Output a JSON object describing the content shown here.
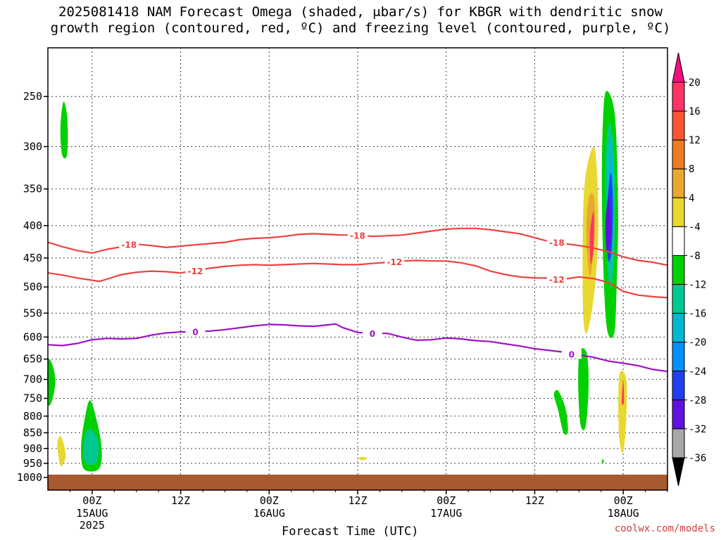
{
  "chart_data": {
    "type": "heatmap",
    "title_line1": "2025081418 NAM Forecast Omega (shaded, μbar/s) for KBGR with dendritic snow",
    "title_line2": "growth region (contoured, red, ºC) and freezing level (contoured, purple, ºC)",
    "xlabel": "Forecast Time (UTC)",
    "credit": "coolwx.com/models",
    "x_range": [
      -6,
      78
    ],
    "y_range": [
      1000,
      200
    ],
    "y_scale": "log-pressure",
    "y_ticks": [
      250,
      300,
      350,
      400,
      450,
      500,
      550,
      600,
      650,
      700,
      750,
      800,
      850,
      900,
      950,
      1000
    ],
    "x_ticks": [
      {
        "h": 0,
        "l1": "00Z",
        "l2": "15AUG",
        "l3": "2025"
      },
      {
        "h": 12,
        "l1": "12Z",
        "l2": "",
        "l3": ""
      },
      {
        "h": 24,
        "l1": "00Z",
        "l2": "16AUG",
        "l3": ""
      },
      {
        "h": 36,
        "l1": "12Z",
        "l2": "",
        "l3": ""
      },
      {
        "h": 48,
        "l1": "00Z",
        "l2": "17AUG",
        "l3": ""
      },
      {
        "h": 60,
        "l1": "12Z",
        "l2": "",
        "l3": ""
      },
      {
        "h": 72,
        "l1": "00Z",
        "l2": "18AUG",
        "l3": ""
      }
    ],
    "colorbar": {
      "labels": [
        20,
        16,
        12,
        8,
        4,
        -4,
        -8,
        -12,
        -16,
        -20,
        -24,
        -28,
        -32,
        -36
      ],
      "colors": [
        "#ff3366",
        "#ff5533",
        "#f07a20",
        "#e8a830",
        "#e8d830",
        "#ffffff",
        "#00d000",
        "#00c890",
        "#00b8d0",
        "#0090ff",
        "#2040f0",
        "#6010e0",
        "#a010c8",
        "#a8a8a8"
      ],
      "top_color": "#f01080",
      "bottom_color": "#000000"
    },
    "contours": [
      {
        "name": "-18",
        "color": "#f04040",
        "label": "-18",
        "points": [
          [
            -6,
            425
          ],
          [
            -4,
            432
          ],
          [
            -2,
            438
          ],
          [
            0,
            442
          ],
          [
            2,
            436
          ],
          [
            4,
            432
          ],
          [
            6,
            428
          ],
          [
            8,
            430
          ],
          [
            10,
            433
          ],
          [
            12,
            431
          ],
          [
            14,
            429
          ],
          [
            16,
            427
          ],
          [
            18,
            425
          ],
          [
            20,
            421
          ],
          [
            22,
            419
          ],
          [
            24,
            418
          ],
          [
            26,
            416
          ],
          [
            28,
            413
          ],
          [
            30,
            412
          ],
          [
            32,
            413
          ],
          [
            34,
            414
          ],
          [
            36,
            414
          ],
          [
            38,
            416
          ],
          [
            40,
            415
          ],
          [
            42,
            414
          ],
          [
            44,
            411
          ],
          [
            46,
            408
          ],
          [
            48,
            405
          ],
          [
            50,
            404
          ],
          [
            52,
            404
          ],
          [
            54,
            406
          ],
          [
            56,
            409
          ],
          [
            58,
            412
          ],
          [
            60,
            418
          ],
          [
            62,
            424
          ],
          [
            64,
            427
          ],
          [
            66,
            430
          ],
          [
            68,
            434
          ],
          [
            70,
            440
          ],
          [
            72,
            448
          ],
          [
            74,
            454
          ],
          [
            76,
            457
          ],
          [
            78,
            462
          ]
        ],
        "labels_at": [
          [
            5,
            428
          ],
          [
            36,
            414
          ],
          [
            63,
            425
          ]
        ]
      },
      {
        "name": "-12",
        "color": "#f04040",
        "label": "-12",
        "points": [
          [
            -6,
            475
          ],
          [
            -4,
            479
          ],
          [
            -2,
            484
          ],
          [
            0,
            488
          ],
          [
            1,
            490
          ],
          [
            2,
            486
          ],
          [
            4,
            478
          ],
          [
            6,
            474
          ],
          [
            8,
            472
          ],
          [
            10,
            473
          ],
          [
            12,
            475
          ],
          [
            14,
            471
          ],
          [
            16,
            467
          ],
          [
            18,
            464
          ],
          [
            20,
            462
          ],
          [
            22,
            461
          ],
          [
            24,
            462
          ],
          [
            26,
            461
          ],
          [
            28,
            460
          ],
          [
            30,
            459
          ],
          [
            32,
            460
          ],
          [
            34,
            461
          ],
          [
            36,
            461
          ],
          [
            38,
            459
          ],
          [
            40,
            457
          ],
          [
            42,
            455
          ],
          [
            44,
            454
          ],
          [
            46,
            455
          ],
          [
            48,
            455
          ],
          [
            50,
            458
          ],
          [
            52,
            463
          ],
          [
            54,
            472
          ],
          [
            56,
            478
          ],
          [
            58,
            482
          ],
          [
            60,
            484
          ],
          [
            62,
            484
          ],
          [
            64,
            486
          ],
          [
            66,
            482
          ],
          [
            68,
            485
          ],
          [
            70,
            492
          ],
          [
            72,
            508
          ],
          [
            74,
            515
          ],
          [
            76,
            518
          ],
          [
            78,
            520
          ]
        ],
        "labels_at": [
          [
            14,
            471
          ],
          [
            41,
            456
          ],
          [
            63,
            486
          ]
        ]
      },
      {
        "name": "0",
        "color": "#a010c8",
        "label": "0",
        "points": [
          [
            -6,
            617
          ],
          [
            -4,
            619
          ],
          [
            -2,
            614
          ],
          [
            0,
            606
          ],
          [
            2,
            603
          ],
          [
            4,
            604
          ],
          [
            6,
            603
          ],
          [
            8,
            596
          ],
          [
            10,
            591
          ],
          [
            12,
            589
          ],
          [
            14,
            588
          ],
          [
            16,
            587
          ],
          [
            18,
            584
          ],
          [
            20,
            580
          ],
          [
            22,
            576
          ],
          [
            24,
            573
          ],
          [
            26,
            574
          ],
          [
            28,
            576
          ],
          [
            30,
            577
          ],
          [
            32,
            574
          ],
          [
            33,
            572
          ],
          [
            34,
            580
          ],
          [
            36,
            590
          ],
          [
            38,
            592
          ],
          [
            40,
            592
          ],
          [
            42,
            600
          ],
          [
            44,
            607
          ],
          [
            46,
            606
          ],
          [
            48,
            602
          ],
          [
            50,
            604
          ],
          [
            52,
            608
          ],
          [
            54,
            610
          ],
          [
            56,
            615
          ],
          [
            58,
            620
          ],
          [
            60,
            626
          ],
          [
            62,
            630
          ],
          [
            64,
            634
          ],
          [
            66,
            640
          ],
          [
            68,
            646
          ],
          [
            70,
            655
          ],
          [
            72,
            660
          ],
          [
            74,
            666
          ],
          [
            76,
            675
          ],
          [
            78,
            680
          ]
        ],
        "labels_at": [
          [
            14,
            588
          ],
          [
            38,
            592
          ],
          [
            65,
            638
          ]
        ]
      }
    ],
    "omega_regions": [
      {
        "color": "#00d000",
        "points": [
          [
            -3.9,
            255
          ],
          [
            -3.4,
            268
          ],
          [
            -3.3,
            295
          ],
          [
            -3.5,
            312
          ],
          [
            -4.1,
            308
          ],
          [
            -4.3,
            280
          ]
        ]
      },
      {
        "color": "#00d000",
        "points": [
          [
            -6,
            655
          ],
          [
            -5.3,
            668
          ],
          [
            -5.0,
            710
          ],
          [
            -5.5,
            760
          ],
          [
            -6,
            760
          ]
        ]
      },
      {
        "color": "#e8d830",
        "points": [
          [
            -4.3,
            860
          ],
          [
            -3.8,
            890
          ],
          [
            -3.6,
            930
          ],
          [
            -4.2,
            960
          ],
          [
            -4.6,
            920
          ],
          [
            -4.7,
            880
          ]
        ]
      },
      {
        "color": "#00d000",
        "points": [
          [
            -0.3,
            755
          ],
          [
            0.7,
            820
          ],
          [
            1.3,
            905
          ],
          [
            0.9,
            970
          ],
          [
            -1.1,
            970
          ],
          [
            -1.5,
            900
          ],
          [
            -1.1,
            820
          ]
        ]
      },
      {
        "color": "#00c890",
        "points": [
          [
            -0.6,
            840
          ],
          [
            0.6,
            860
          ],
          [
            0.9,
            905
          ],
          [
            0.5,
            950
          ],
          [
            -0.8,
            950
          ],
          [
            -1.2,
            905
          ]
        ]
      },
      {
        "color": "#e8d830",
        "points": [
          [
            36.6,
            928
          ],
          [
            37.3,
            933
          ],
          [
            36.6,
            940
          ],
          [
            36.1,
            933
          ]
        ]
      },
      {
        "color": "#00d000",
        "points": [
          [
            63.2,
            730
          ],
          [
            64.2,
            780
          ],
          [
            64.5,
            845
          ],
          [
            63.9,
            850
          ],
          [
            63.2,
            785
          ],
          [
            62.6,
            740
          ]
        ]
      },
      {
        "color": "#00d000",
        "points": [
          [
            66.4,
            625
          ],
          [
            67.1,
            640
          ],
          [
            67.3,
            720
          ],
          [
            66.9,
            830
          ],
          [
            66.2,
            825
          ],
          [
            65.9,
            720
          ],
          [
            66.0,
            640
          ]
        ]
      },
      {
        "color": "#e8d830",
        "points": [
          [
            68.0,
            300
          ],
          [
            68.5,
            340
          ],
          [
            68.6,
            420
          ],
          [
            68.0,
            520
          ],
          [
            67.1,
            590
          ],
          [
            66.6,
            560
          ],
          [
            66.5,
            440
          ],
          [
            66.8,
            340
          ]
        ]
      },
      {
        "color": "#e8a830",
        "points": [
          [
            68.0,
            360
          ],
          [
            68.2,
            400
          ],
          [
            67.7,
            470
          ],
          [
            67.3,
            470
          ],
          [
            67.0,
            400
          ],
          [
            67.4,
            360
          ]
        ]
      },
      {
        "color": "#ff3366",
        "points": [
          [
            68.0,
            380
          ],
          [
            68.0,
            430
          ],
          [
            67.6,
            460
          ],
          [
            67.5,
            410
          ]
        ]
      },
      {
        "color": "#00d000",
        "points": [
          [
            69.8,
            245
          ],
          [
            70.9,
            270
          ],
          [
            71.3,
            380
          ],
          [
            71.1,
            500
          ],
          [
            70.8,
            590
          ],
          [
            69.9,
            590
          ],
          [
            69.4,
            500
          ],
          [
            69.1,
            350
          ],
          [
            69.3,
            265
          ]
        ]
      },
      {
        "color": "#00c890",
        "points": [
          [
            70.2,
            275
          ],
          [
            70.8,
            320
          ],
          [
            70.8,
            440
          ],
          [
            70.3,
            500
          ],
          [
            69.8,
            450
          ],
          [
            69.6,
            320
          ]
        ]
      },
      {
        "color": "#00b8d0",
        "points": [
          [
            70.3,
            290
          ],
          [
            70.7,
            340
          ],
          [
            70.6,
            430
          ],
          [
            70.1,
            460
          ],
          [
            69.9,
            340
          ]
        ]
      },
      {
        "color": "#2040f0",
        "points": [
          [
            70.3,
            330
          ],
          [
            70.6,
            370
          ],
          [
            70.4,
            440
          ],
          [
            69.9,
            450
          ],
          [
            69.8,
            380
          ]
        ]
      },
      {
        "color": "#6010e0",
        "points": [
          [
            70.0,
            360
          ],
          [
            70.4,
            410
          ],
          [
            69.8,
            440
          ],
          [
            69.6,
            400
          ]
        ]
      },
      {
        "color": "#e8d830",
        "points": [
          [
            72.0,
            680
          ],
          [
            72.5,
            720
          ],
          [
            72.3,
            850
          ],
          [
            71.9,
            915
          ],
          [
            71.4,
            850
          ],
          [
            71.4,
            700
          ]
        ]
      },
      {
        "color": "#ff3366",
        "points": [
          [
            72.0,
            700
          ],
          [
            72.1,
            760
          ],
          [
            71.8,
            760
          ]
        ]
      },
      {
        "color": "#00d000",
        "points": [
          [
            69.2,
            935
          ],
          [
            69.4,
            945
          ],
          [
            69.1,
            948
          ]
        ]
      }
    ],
    "ground": {
      "color": "#a85a30",
      "level_hpa": 1000
    }
  }
}
